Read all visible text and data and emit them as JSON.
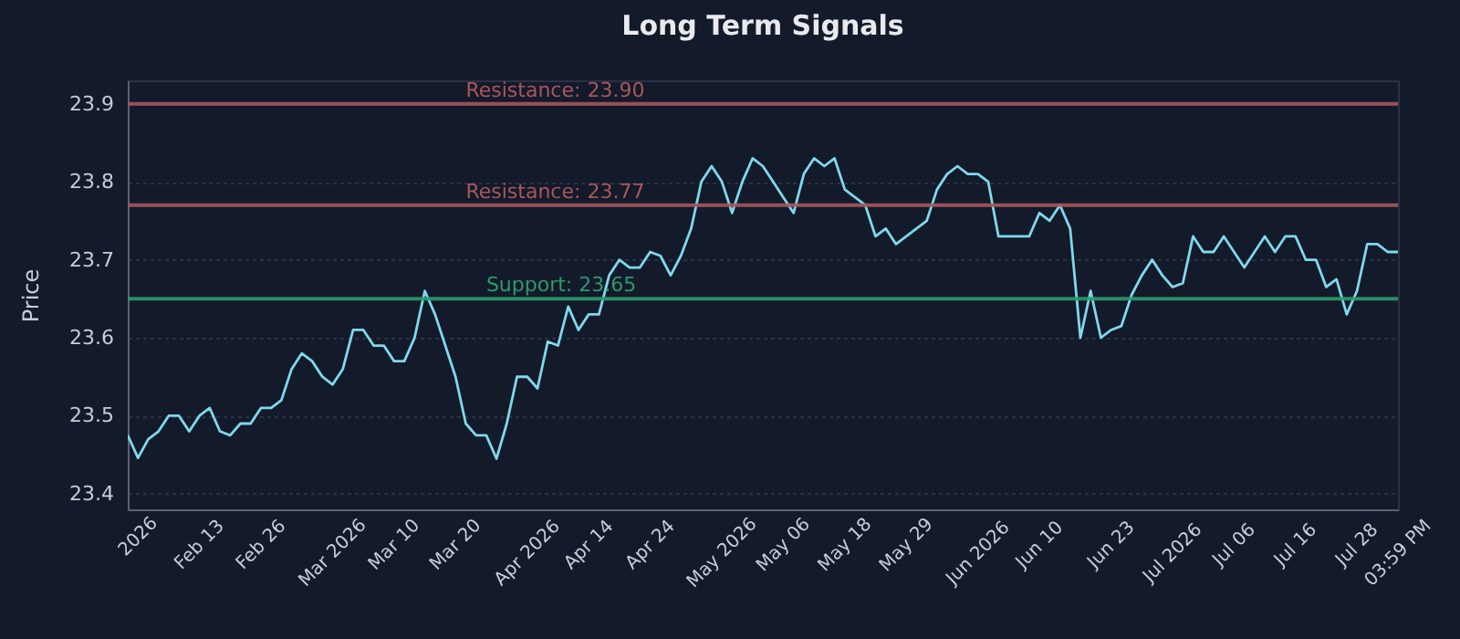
{
  "chart_data": {
    "type": "line",
    "title": "Long Term Signals",
    "ylabel": "Price",
    "categories": [
      null,
      "2026",
      null,
      null,
      null,
      null,
      null,
      "Feb 13",
      null,
      null,
      null,
      null,
      null,
      "Feb 26",
      null,
      null,
      null,
      null,
      null,
      null,
      "Mar 2026",
      null,
      null,
      null,
      null,
      null,
      "Mar 10",
      null,
      null,
      null,
      null,
      null,
      "Mar 20",
      null,
      null,
      null,
      null,
      null,
      null,
      "Apr 2026",
      null,
      null,
      null,
      null,
      null,
      "Apr 14",
      null,
      null,
      null,
      null,
      null,
      "Apr 24",
      null,
      null,
      null,
      null,
      null,
      null,
      "May 2026",
      null,
      null,
      null,
      null,
      null,
      "May 06",
      null,
      null,
      null,
      null,
      null,
      "May 18",
      null,
      null,
      null,
      null,
      null,
      "May 29",
      null,
      null,
      null,
      null,
      null,
      null,
      "Jun 2026",
      null,
      null,
      null,
      null,
      null,
      "Jun 10",
      null,
      null,
      null,
      null,
      null,
      null,
      "Jun 23",
      null,
      null,
      null,
      null,
      null,
      "Jul 2026",
      null,
      null,
      null,
      null,
      null,
      "Jul 06",
      null,
      null,
      null,
      null,
      null,
      "Jul 16",
      null,
      null,
      null,
      null,
      null,
      "Jul 28",
      null,
      null,
      null,
      "03:59 PM"
    ],
    "series": [
      {
        "color": "#7fd8ec",
        "values": [
          23.475,
          23.446,
          23.47,
          23.48,
          23.5,
          23.5,
          23.48,
          23.5,
          23.51,
          23.48,
          23.475,
          23.49,
          23.49,
          23.51,
          23.51,
          23.52,
          23.56,
          23.58,
          23.57,
          23.55,
          23.54,
          23.56,
          23.61,
          23.61,
          23.59,
          23.59,
          23.57,
          23.57,
          23.6,
          23.66,
          23.63,
          23.59,
          23.55,
          23.49,
          23.475,
          23.475,
          23.445,
          23.49,
          23.55,
          23.55,
          23.535,
          23.595,
          23.59,
          23.64,
          23.61,
          23.63,
          23.63,
          23.68,
          23.7,
          23.69,
          23.69,
          23.71,
          23.705,
          23.68,
          23.705,
          23.74,
          23.8,
          23.82,
          23.8,
          23.76,
          23.8,
          23.83,
          23.82,
          23.8,
          23.78,
          23.76,
          23.81,
          23.83,
          23.82,
          23.83,
          23.79,
          23.78,
          23.77,
          23.73,
          23.74,
          23.72,
          23.73,
          23.74,
          23.75,
          23.79,
          23.81,
          23.82,
          23.81,
          23.81,
          23.8,
          23.73,
          23.73,
          23.73,
          23.73,
          23.76,
          23.75,
          23.77,
          23.74,
          23.6,
          23.66,
          23.6,
          23.61,
          23.615,
          23.655,
          23.68,
          23.7,
          23.68,
          23.665,
          23.67,
          23.73,
          23.71,
          23.71,
          23.73,
          23.71,
          23.69,
          23.71,
          23.73,
          23.71,
          23.73,
          23.73,
          23.7,
          23.7,
          23.665,
          23.675,
          23.63,
          23.66,
          23.72,
          23.72,
          23.71,
          23.71
        ]
      }
    ],
    "ylim": [
      23.38,
      23.93
    ],
    "yticks": [
      23.4,
      23.5,
      23.6,
      23.7,
      23.8,
      23.9
    ],
    "grid": "y",
    "line_style": "solid",
    "ref_lines": [
      {
        "axis": "y",
        "value": 23.9,
        "label": "Resistance: 23.90",
        "color": "#a8575c"
      },
      {
        "axis": "y",
        "value": 23.77,
        "label": "Resistance: 23.77",
        "color": "#a8575c"
      },
      {
        "axis": "y",
        "value": 23.65,
        "label": "Support: 23.65",
        "color": "#2e9a6e"
      }
    ]
  }
}
